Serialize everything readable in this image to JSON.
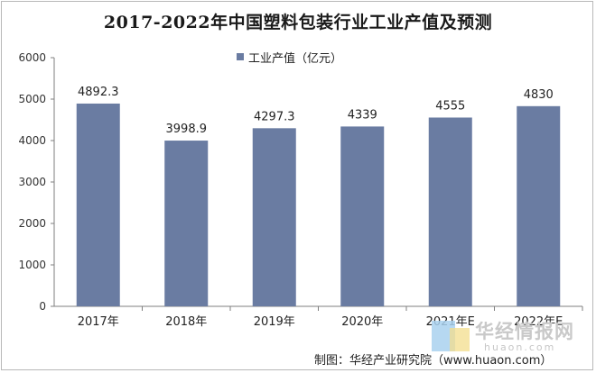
{
  "chart_data": {
    "type": "bar",
    "title": "2017-2022年中国塑料包装行业工业产值及预测",
    "categories": [
      "2017年",
      "2018年",
      "2019年",
      "2020年",
      "2021年E",
      "2022年E"
    ],
    "series": [
      {
        "name": "工业产值（亿元）",
        "values": [
          4892.3,
          3998.9,
          4297.3,
          4339,
          4555,
          4830
        ]
      }
    ],
    "data_labels": [
      "4892.3",
      "3998.9",
      "4297.3",
      "4339",
      "4555",
      "4830"
    ],
    "yticks": [
      "0",
      "1000",
      "2000",
      "3000",
      "4000",
      "5000",
      "6000"
    ],
    "ylim": [
      0,
      6000
    ],
    "xlabel": "",
    "ylabel": "",
    "grid": false,
    "legend_position": "top-center",
    "bar_color": "#6a7ca2"
  },
  "watermark": {
    "text": "华经情报网",
    "url": "huaon.com"
  },
  "source": "制图：华经产业研究院（www.huaon.com）"
}
